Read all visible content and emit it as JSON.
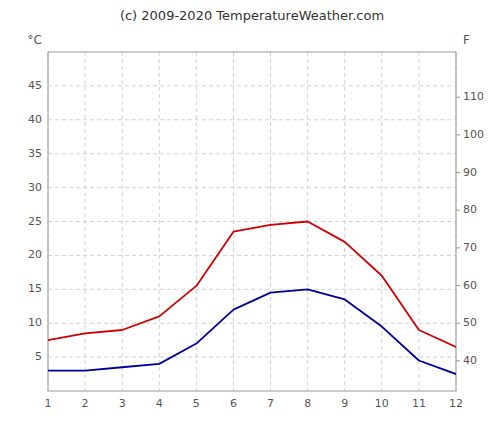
{
  "chart_data": {
    "type": "line",
    "title": "(c) 2009-2020 TemperatureWeather.com",
    "y_label": "°C",
    "y2_label": "F",
    "x": [
      1,
      2,
      3,
      4,
      5,
      6,
      7,
      8,
      9,
      10,
      11,
      12
    ],
    "xlim": [
      1,
      12
    ],
    "xticks": [
      1,
      2,
      3,
      4,
      5,
      6,
      7,
      8,
      9,
      10,
      11,
      12
    ],
    "series": [
      {
        "color": "#cc0000",
        "values": [
          7.5,
          8.5,
          9.0,
          11.0,
          15.5,
          23.5,
          24.5,
          25.0,
          22.0,
          17.0,
          9.0,
          6.5
        ]
      },
      {
        "color": "#000099",
        "values": [
          3.0,
          3.0,
          3.5,
          4.0,
          7.0,
          12.0,
          14.5,
          15.0,
          13.5,
          9.5,
          4.5,
          2.5
        ]
      }
    ],
    "ylim": [
      0,
      50
    ],
    "yticks": [
      5,
      10,
      15,
      20,
      25,
      30,
      35,
      40,
      45
    ],
    "y2lim": [
      32,
      122
    ],
    "y2ticks": [
      40,
      50,
      60,
      70,
      80,
      90,
      100,
      110
    ],
    "grid": true
  }
}
